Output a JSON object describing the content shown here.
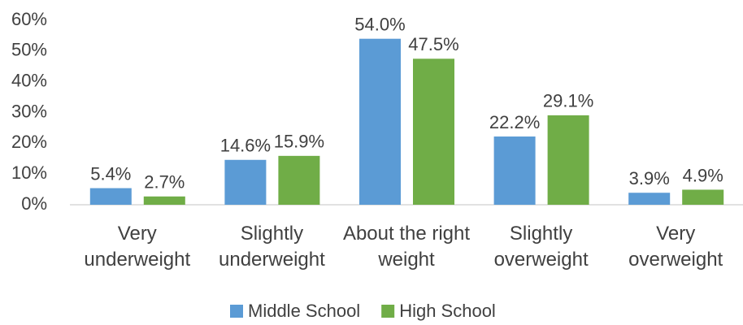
{
  "chart_data": {
    "type": "bar",
    "categories": [
      "Very underweight",
      "Slightly underweight",
      "About the right weight",
      "Slightly overweight",
      "Very overweight"
    ],
    "series": [
      {
        "name": "Middle School",
        "color": "#5b9bd5",
        "values": [
          5.4,
          14.6,
          54.0,
          22.2,
          3.9
        ],
        "value_labels": [
          "5.4%",
          "14.6%",
          "54.0%",
          "22.2%",
          "3.9%"
        ]
      },
      {
        "name": "High School",
        "color": "#70ad47",
        "values": [
          2.7,
          15.9,
          47.5,
          29.1,
          4.9
        ],
        "value_labels": [
          "2.7%",
          "15.9%",
          "47.5%",
          "29.1%",
          "4.9%"
        ]
      }
    ],
    "ylim": [
      0,
      60
    ],
    "yticks": [
      {
        "value": 0,
        "label": "0%"
      },
      {
        "value": 10,
        "label": "10%"
      },
      {
        "value": 20,
        "label": "20%"
      },
      {
        "value": 30,
        "label": "30%"
      },
      {
        "value": 40,
        "label": "40%"
      },
      {
        "value": 50,
        "label": "50%"
      },
      {
        "value": 60,
        "label": "60%"
      }
    ],
    "grid": false,
    "legend": "bottom"
  }
}
